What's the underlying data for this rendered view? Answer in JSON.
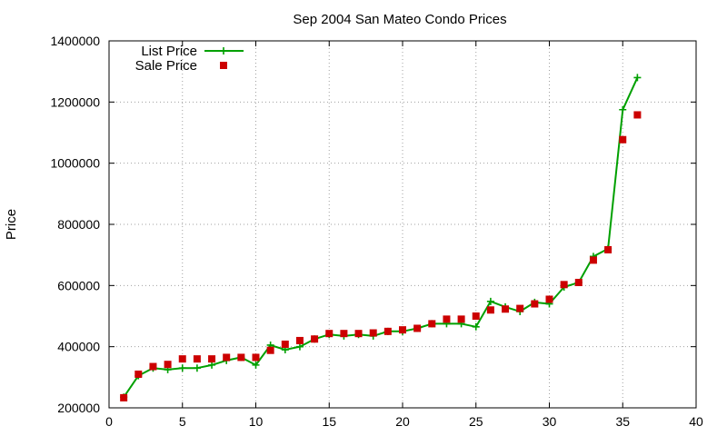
{
  "chart_data": {
    "type": "line",
    "title": "Sep 2004 San Mateo Condo Prices",
    "xlabel": "",
    "ylabel": "Price",
    "xlim": [
      0,
      40
    ],
    "ylim": [
      200000,
      1400000
    ],
    "x_ticks": [
      "0",
      "5",
      "10",
      "15",
      "20",
      "25",
      "30",
      "35",
      "40"
    ],
    "y_ticks": [
      "200000",
      "400000",
      "600000",
      "800000",
      "1000000",
      "1200000",
      "1400000"
    ],
    "grid": true,
    "legend_position": "top-left",
    "series": [
      {
        "name": "List Price",
        "style": "line-with-plus-markers",
        "color": "#00a000",
        "x": [
          1,
          2,
          3,
          4,
          5,
          6,
          7,
          8,
          9,
          10,
          11,
          12,
          13,
          14,
          15,
          16,
          17,
          18,
          19,
          20,
          21,
          22,
          23,
          24,
          25,
          26,
          27,
          28,
          29,
          30,
          31,
          32,
          33,
          34,
          35,
          36
        ],
        "y": [
          235000,
          305000,
          330000,
          325000,
          330000,
          330000,
          340000,
          355000,
          365000,
          340000,
          405000,
          390000,
          400000,
          425000,
          440000,
          435000,
          440000,
          435000,
          450000,
          450000,
          460000,
          475000,
          475000,
          475000,
          465000,
          548000,
          530000,
          515000,
          545000,
          540000,
          595000,
          610000,
          695000,
          720000,
          1175000,
          1280000
        ]
      },
      {
        "name": "Sale Price",
        "style": "square-markers",
        "color": "#cc0000",
        "x": [
          1,
          2,
          3,
          4,
          5,
          6,
          7,
          8,
          9,
          10,
          11,
          12,
          13,
          14,
          15,
          16,
          17,
          18,
          19,
          20,
          21,
          22,
          23,
          24,
          25,
          26,
          27,
          28,
          29,
          30,
          31,
          32,
          33,
          34,
          35,
          36
        ],
        "y": [
          233000,
          310000,
          335000,
          342000,
          360000,
          360000,
          360000,
          365000,
          365000,
          365000,
          388000,
          408000,
          420000,
          425000,
          443000,
          443000,
          443000,
          445000,
          450000,
          455000,
          460000,
          475000,
          490000,
          490000,
          500000,
          520000,
          523000,
          525000,
          540000,
          555000,
          603000,
          610000,
          683000,
          717000,
          1077000,
          1158000
        ]
      }
    ]
  }
}
